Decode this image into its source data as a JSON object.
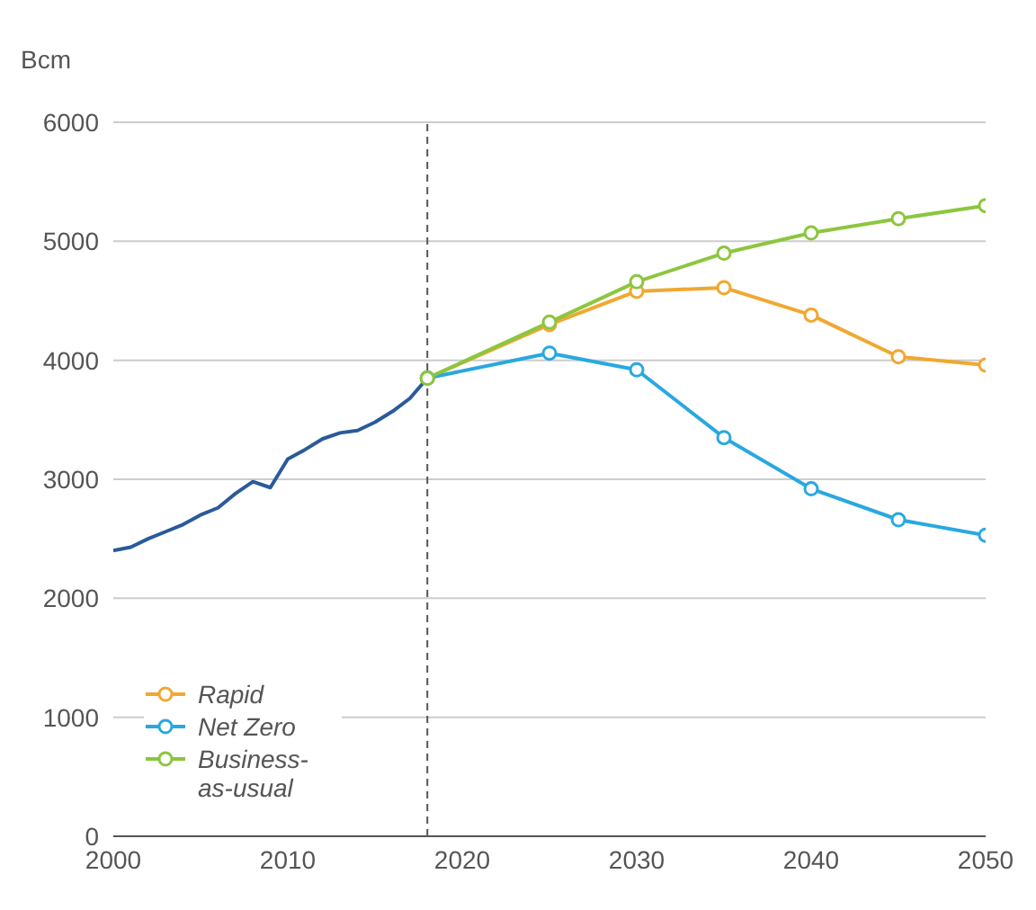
{
  "chart_data": {
    "type": "line",
    "ylabel": "Bcm",
    "xlim": [
      2000,
      2050
    ],
    "xticks": [
      2000,
      2010,
      2020,
      2030,
      2040,
      2050
    ],
    "ylim": [
      0,
      6000
    ],
    "yticks": [
      0,
      1000,
      2000,
      3000,
      4000,
      5000,
      6000
    ],
    "grid": "y",
    "legend": "bottom left",
    "ref_lines": [
      {
        "axis": "x",
        "value": 2018,
        "label": null,
        "color": "#555555",
        "line_style": "dashed"
      }
    ],
    "series": [
      {
        "color": "#2a5a9a",
        "marker": "none",
        "x": [
          2000,
          2001,
          2002,
          2003,
          2004,
          2005,
          2006,
          2007,
          2008,
          2009,
          2010,
          2011,
          2012,
          2013,
          2014,
          2015,
          2016,
          2017,
          2018
        ],
        "values": [
          2400,
          2430,
          2500,
          2560,
          2620,
          2700,
          2760,
          2880,
          2980,
          2930,
          3170,
          3250,
          3340,
          3390,
          3410,
          3480,
          3570,
          3680,
          3850
        ]
      },
      {
        "name": "Rapid",
        "color": "#f0a830",
        "marker": "circle",
        "x": [
          2018,
          2025,
          2030,
          2035,
          2040,
          2045,
          2050
        ],
        "values": [
          3850,
          4300,
          4580,
          4610,
          4380,
          4030,
          3960
        ]
      },
      {
        "name": "Net Zero",
        "color": "#29a8e0",
        "marker": "circle",
        "x": [
          2018,
          2025,
          2030,
          2035,
          2040,
          2045,
          2050
        ],
        "values": [
          3850,
          4060,
          3920,
          3350,
          2920,
          2660,
          2530
        ]
      },
      {
        "name": "Business-as-usual",
        "color": "#8cc63f",
        "marker": "circle",
        "x": [
          2018,
          2025,
          2030,
          2035,
          2040,
          2045,
          2050
        ],
        "values": [
          3850,
          4320,
          4660,
          4900,
          5070,
          5190,
          5300
        ]
      }
    ]
  }
}
